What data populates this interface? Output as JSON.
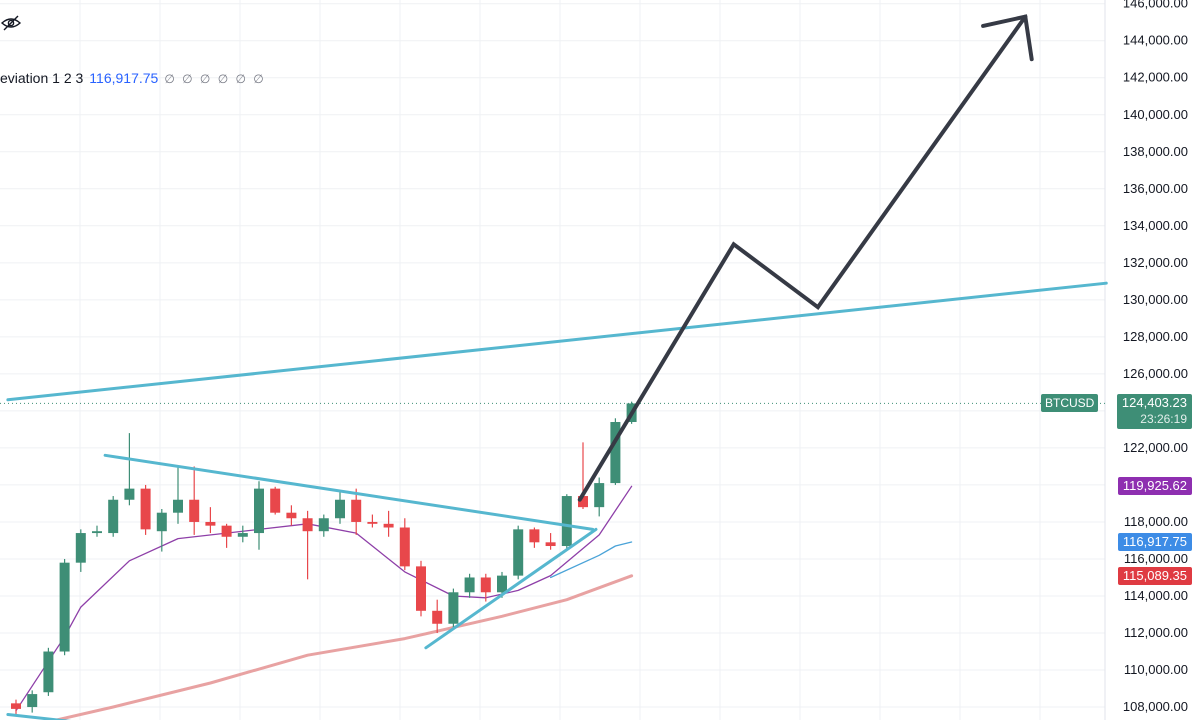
{
  "legend": {
    "label": "eviation 1 2 3",
    "value": "116,917.75",
    "placeholders": "∅ ∅ ∅ ∅ ∅ ∅"
  },
  "price_tags": {
    "symbol": "BTCUSD",
    "last_price": "124,403.23",
    "countdown": "23:26:19",
    "purple": "119,925.62",
    "blue": "116,917.75",
    "red": "115,089.35"
  },
  "colors": {
    "up": "#3e8e76",
    "down": "#e8474b",
    "trend": "#56b7cf",
    "arrow": "#363a45",
    "ma_purple": "#8e3fa8",
    "ma_blue": "#4aa3d8",
    "ma_red": "#e8a2a2",
    "tag_purple": "#8e2fb0",
    "tag_blue": "#3d8ce6",
    "tag_red": "#df3b42",
    "grid": "#eff1f4"
  },
  "chart_data": {
    "type": "candlestick",
    "y_axis": {
      "range": [
        107300,
        146200
      ],
      "ticks": [
        "146,000.00",
        "144,000.00",
        "142,000.00",
        "140,000.00",
        "138,000.00",
        "136,000.00",
        "134,000.00",
        "132,000.00",
        "130,000.00",
        "128,000.00",
        "126,000.00",
        "124,000.00",
        "122,000.00",
        "120,000.00",
        "118,000.00",
        "116,000.00",
        "114,000.00",
        "112,000.00",
        "110,000.00",
        "108,000.00"
      ],
      "tick_values": [
        146000,
        144000,
        142000,
        140000,
        138000,
        136000,
        134000,
        132000,
        130000,
        128000,
        126000,
        124000,
        122000,
        120000,
        118000,
        116000,
        114000,
        112000,
        110000,
        108000
      ]
    },
    "x_range": [
      0,
      74
    ],
    "candles": [
      {
        "x": 0,
        "o": 108200,
        "h": 108400,
        "l": 107500,
        "c": 107900
      },
      {
        "x": 1,
        "o": 108000,
        "h": 108900,
        "l": 107700,
        "c": 108700
      },
      {
        "x": 2,
        "o": 108800,
        "h": 111200,
        "l": 108600,
        "c": 111000
      },
      {
        "x": 3,
        "o": 111000,
        "h": 116000,
        "l": 110800,
        "c": 115800
      },
      {
        "x": 4,
        "o": 115800,
        "h": 117600,
        "l": 115300,
        "c": 117400
      },
      {
        "x": 5,
        "o": 117400,
        "h": 117800,
        "l": 117200,
        "c": 117500
      },
      {
        "x": 6,
        "o": 117400,
        "h": 119400,
        "l": 117200,
        "c": 119200
      },
      {
        "x": 7,
        "o": 119200,
        "h": 122800,
        "l": 118900,
        "c": 119800
      },
      {
        "x": 8,
        "o": 119800,
        "h": 120000,
        "l": 117300,
        "c": 117600
      },
      {
        "x": 9,
        "o": 117500,
        "h": 118700,
        "l": 116400,
        "c": 118500
      },
      {
        "x": 10,
        "o": 118500,
        "h": 121000,
        "l": 117900,
        "c": 119200
      },
      {
        "x": 11,
        "o": 119200,
        "h": 121000,
        "l": 117300,
        "c": 118000
      },
      {
        "x": 12,
        "o": 118000,
        "h": 118800,
        "l": 117400,
        "c": 117800
      },
      {
        "x": 13,
        "o": 117800,
        "h": 117900,
        "l": 116600,
        "c": 117200
      },
      {
        "x": 14,
        "o": 117200,
        "h": 117800,
        "l": 116900,
        "c": 117400
      },
      {
        "x": 15,
        "o": 117400,
        "h": 120200,
        "l": 116500,
        "c": 119800
      },
      {
        "x": 16,
        "o": 119800,
        "h": 119900,
        "l": 118400,
        "c": 118500
      },
      {
        "x": 17,
        "o": 118500,
        "h": 118900,
        "l": 117800,
        "c": 118200
      },
      {
        "x": 18,
        "o": 118200,
        "h": 118600,
        "l": 114900,
        "c": 117500
      },
      {
        "x": 19,
        "o": 117500,
        "h": 118400,
        "l": 117200,
        "c": 118200
      },
      {
        "x": 20,
        "o": 118200,
        "h": 119600,
        "l": 117900,
        "c": 119200
      },
      {
        "x": 21,
        "o": 119200,
        "h": 119800,
        "l": 117300,
        "c": 118000
      },
      {
        "x": 22,
        "o": 118000,
        "h": 118400,
        "l": 117700,
        "c": 117900
      },
      {
        "x": 23,
        "o": 117900,
        "h": 118600,
        "l": 117200,
        "c": 117700
      },
      {
        "x": 24,
        "o": 117700,
        "h": 118200,
        "l": 115400,
        "c": 115600
      },
      {
        "x": 25,
        "o": 115600,
        "h": 115900,
        "l": 112900,
        "c": 113200
      },
      {
        "x": 26,
        "o": 113200,
        "h": 113800,
        "l": 112000,
        "c": 112500
      },
      {
        "x": 27,
        "o": 112500,
        "h": 114400,
        "l": 112300,
        "c": 114200
      },
      {
        "x": 28,
        "o": 114200,
        "h": 115200,
        "l": 113900,
        "c": 115000
      },
      {
        "x": 29,
        "o": 115000,
        "h": 115200,
        "l": 113700,
        "c": 114200
      },
      {
        "x": 30,
        "o": 114200,
        "h": 115300,
        "l": 113900,
        "c": 115100
      },
      {
        "x": 31,
        "o": 115100,
        "h": 117800,
        "l": 114900,
        "c": 117600
      },
      {
        "x": 32,
        "o": 117600,
        "h": 117700,
        "l": 116600,
        "c": 116900
      },
      {
        "x": 33,
        "o": 116900,
        "h": 117400,
        "l": 116500,
        "c": 116700
      },
      {
        "x": 34,
        "o": 116700,
        "h": 119500,
        "l": 116500,
        "c": 119400
      },
      {
        "x": 35,
        "o": 119400,
        "h": 122300,
        "l": 118700,
        "c": 118800
      },
      {
        "x": 36,
        "o": 118800,
        "h": 120400,
        "l": 118300,
        "c": 120100
      },
      {
        "x": 37,
        "o": 120100,
        "h": 123600,
        "l": 120000,
        "c": 123400
      },
      {
        "x": 38,
        "o": 123400,
        "h": 124500,
        "l": 123300,
        "c": 124403
      }
    ],
    "ma_purple": [
      [
        0,
        107800
      ],
      [
        3,
        111800
      ],
      [
        4,
        113400
      ],
      [
        7,
        115900
      ],
      [
        10,
        117100
      ],
      [
        15,
        117600
      ],
      [
        18,
        117900
      ],
      [
        21,
        117400
      ],
      [
        24,
        115300
      ],
      [
        27,
        114000
      ],
      [
        29,
        113900
      ],
      [
        31,
        114300
      ],
      [
        33,
        115100
      ],
      [
        36,
        117300
      ],
      [
        38,
        119925
      ]
    ],
    "ma_blue": [
      [
        33,
        115000
      ],
      [
        36,
        116200
      ],
      [
        37,
        116700
      ],
      [
        38,
        116917
      ]
    ],
    "ma_red": [
      [
        1,
        107000
      ],
      [
        6,
        108000
      ],
      [
        12,
        109300
      ],
      [
        18,
        110800
      ],
      [
        24,
        111700
      ],
      [
        30,
        112900
      ],
      [
        34,
        113800
      ],
      [
        38,
        115089
      ]
    ],
    "trendlines": [
      {
        "points": [
          [
            -0.5,
            124600
          ],
          [
            67.3,
            130900
          ]
        ]
      },
      {
        "points": [
          [
            5.5,
            121600
          ],
          [
            35.6,
            117600
          ]
        ]
      },
      {
        "points": [
          [
            25.3,
            111200
          ],
          [
            35.8,
            117600
          ]
        ]
      },
      {
        "points": [
          [
            -0.5,
            107600
          ],
          [
            3.6,
            107200
          ]
        ]
      }
    ],
    "projection_arrow": {
      "points": [
        [
          34.8,
          119200
        ],
        [
          44.3,
          133000
        ],
        [
          49.5,
          129600
        ],
        [
          62.3,
          145300
        ]
      ],
      "head": [
        [
          59.7,
          144800
        ],
        [
          62.3,
          145300
        ],
        [
          62.7,
          143000
        ]
      ]
    },
    "current_price": 124403.23
  }
}
